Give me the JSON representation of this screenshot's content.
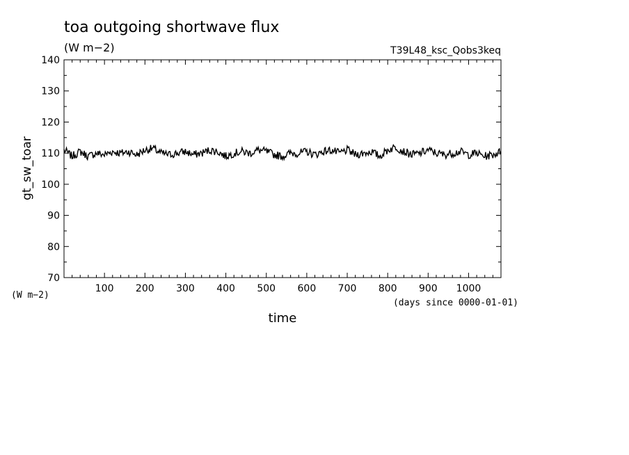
{
  "chart_data": {
    "type": "line",
    "title": "toa outgoing shortwave flux",
    "subtitle": "(W m−2)",
    "run_label": "T39L48_ksc_Qobs3keq",
    "xlabel": "time",
    "x_unit": "(days since 0000-01-01)",
    "ylabel": "gt_sw_toar",
    "y_unit": "(W m−2)",
    "xlim": [
      0,
      1080
    ],
    "ylim": [
      70,
      140
    ],
    "x_ticks": [
      100,
      200,
      300,
      400,
      500,
      600,
      700,
      800,
      900,
      1000
    ],
    "y_ticks": [
      70,
      80,
      90,
      100,
      110,
      120,
      130,
      140
    ],
    "grid": false,
    "legend": "none",
    "line_color": "#000000",
    "series": [
      {
        "x": [
          0,
          20,
          40,
          60,
          80,
          100,
          120,
          140,
          160,
          180,
          200,
          220,
          240,
          260,
          280,
          300,
          320,
          340,
          360,
          380,
          400,
          420,
          440,
          460,
          480,
          500,
          520,
          540,
          560,
          580,
          600,
          620,
          640,
          660,
          680,
          700,
          720,
          740,
          760,
          780,
          800,
          820,
          840,
          860,
          880,
          900,
          920,
          940,
          960,
          980,
          1000,
          1020,
          1040,
          1060,
          1080
        ],
        "values": [
          111,
          109,
          110.5,
          109,
          110,
          109.5,
          110.5,
          110,
          110.5,
          109.5,
          111,
          111.5,
          110,
          109.5,
          110,
          110.5,
          109.5,
          110,
          111,
          110.5,
          109,
          110,
          110.5,
          110,
          111,
          110.5,
          109.5,
          109,
          110,
          110,
          110.5,
          109.5,
          110.5,
          111,
          110,
          111,
          109.5,
          110,
          110.5,
          109,
          111,
          112,
          110.5,
          109.5,
          110,
          111,
          110,
          109.5,
          110,
          110.5,
          109.5,
          110,
          109,
          109.5,
          110.5
        ]
      }
    ]
  }
}
